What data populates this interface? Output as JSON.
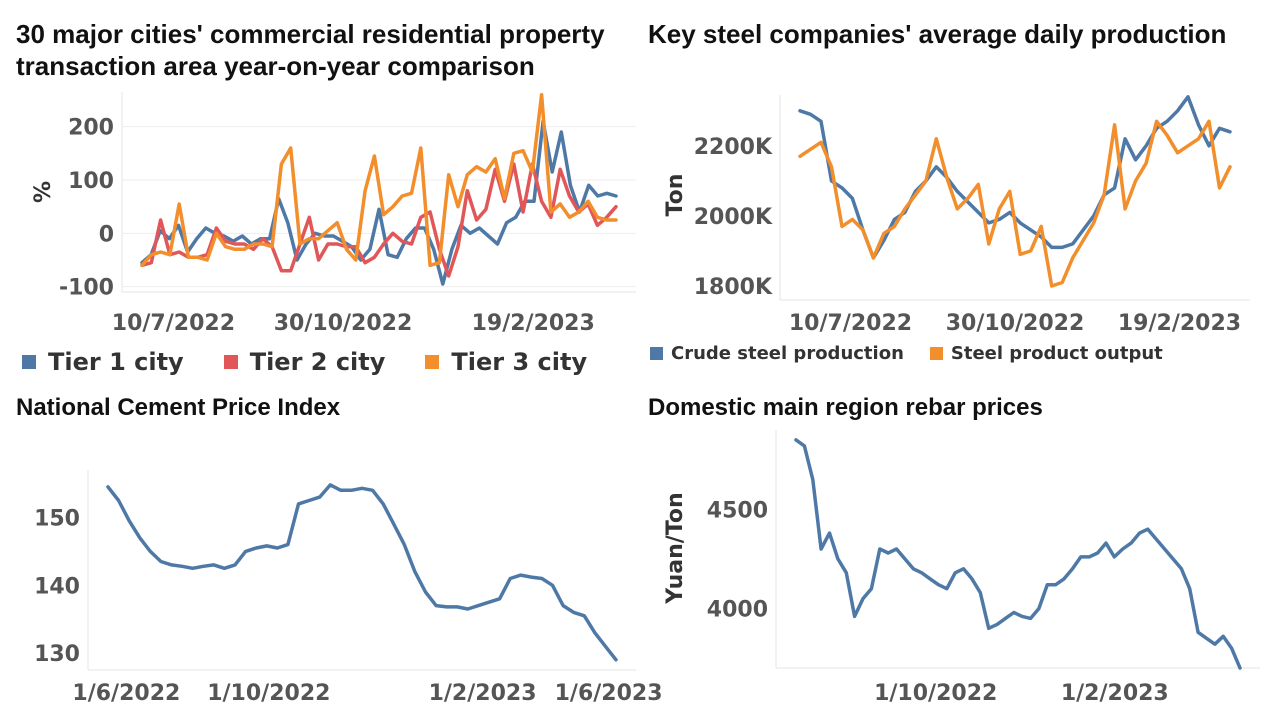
{
  "chart_data": [
    {
      "type": "line",
      "title": "30 major cities' commercial residential property transaction area year-on-year comparison",
      "ylabel": "%",
      "ylim": [
        -110,
        265
      ],
      "yticks": [
        -100,
        0,
        100,
        200
      ],
      "xticks": [
        "10/7/2022",
        "30/10/2022",
        "19/2/2023"
      ],
      "legend_position": "bottom",
      "grid": true,
      "series": [
        {
          "name": "Tier 1 city",
          "color": "#4e79a7",
          "values": [
            -55,
            -40,
            5,
            -10,
            15,
            -35,
            -10,
            10,
            0,
            -5,
            -15,
            -5,
            -20,
            -10,
            -10,
            65,
            20,
            -50,
            -20,
            0,
            -5,
            -5,
            -15,
            -25,
            -50,
            -30,
            45,
            -40,
            -45,
            -10,
            10,
            10,
            -30,
            -95,
            -30,
            15,
            0,
            10,
            -5,
            -20,
            20,
            30,
            60,
            60,
            210,
            115,
            190,
            90,
            40,
            90,
            70,
            75,
            70
          ]
        },
        {
          "name": "Tier 2 city",
          "color": "#e15759",
          "values": [
            -60,
            -55,
            25,
            -40,
            -35,
            -45,
            -45,
            -40,
            10,
            -15,
            -20,
            -20,
            -30,
            -10,
            -25,
            -70,
            -70,
            -20,
            30,
            -50,
            -20,
            -20,
            -25,
            -25,
            -55,
            -45,
            -20,
            0,
            -15,
            -20,
            30,
            40,
            -30,
            -80,
            -25,
            80,
            25,
            45,
            120,
            60,
            130,
            40,
            130,
            60,
            30,
            120,
            70,
            40,
            55,
            15,
            30,
            50
          ]
        },
        {
          "name": "Tier 3 city",
          "color": "#f28e2b",
          "values": [
            -60,
            -40,
            -35,
            -40,
            55,
            -45,
            -45,
            -50,
            0,
            -25,
            -30,
            -30,
            -20,
            -20,
            -25,
            130,
            160,
            -20,
            -10,
            -10,
            5,
            20,
            -30,
            -50,
            80,
            145,
            35,
            50,
            70,
            75,
            160,
            -60,
            -55,
            110,
            50,
            110,
            125,
            115,
            140,
            65,
            150,
            155,
            115,
            260,
            40,
            55,
            30,
            40,
            60,
            30,
            25,
            25
          ]
        }
      ]
    },
    {
      "type": "line",
      "title": "Key steel companies' average daily production",
      "ylabel": "Ton",
      "ylim": [
        1760,
        2345
      ],
      "yticks": [
        "1800K",
        "2000K",
        "2200K"
      ],
      "ytick_values": [
        1800,
        2000,
        2200
      ],
      "xticks": [
        "10/7/2022",
        "30/10/2022",
        "19/2/2023"
      ],
      "legend_position": "bottom",
      "grid": false,
      "series": [
        {
          "name": "Crude steel production",
          "color": "#4e79a7",
          "values": [
            2300,
            2290,
            2270,
            2100,
            2080,
            2050,
            1960,
            1880,
            1930,
            1990,
            2010,
            2070,
            2100,
            2140,
            2110,
            2070,
            2040,
            2010,
            1980,
            1990,
            2010,
            1980,
            1960,
            1940,
            1910,
            1910,
            1920,
            1960,
            2000,
            2060,
            2080,
            2220,
            2160,
            2200,
            2250,
            2270,
            2300,
            2340,
            2260,
            2200,
            2250,
            2240
          ]
        },
        {
          "name": "Steel product output",
          "color": "#f28e2b",
          "values": [
            2170,
            2190,
            2210,
            2140,
            1970,
            1990,
            1960,
            1880,
            1950,
            1970,
            2020,
            2060,
            2100,
            2220,
            2110,
            2020,
            2050,
            2090,
            1920,
            2020,
            2070,
            1890,
            1900,
            1970,
            1800,
            1810,
            1880,
            1930,
            1980,
            2060,
            2260,
            2020,
            2100,
            2150,
            2270,
            2230,
            2180,
            2200,
            2220,
            2270,
            2080,
            2140
          ]
        }
      ]
    },
    {
      "type": "line",
      "title": "National Cement Price Index",
      "ylabel": "",
      "ylim": [
        127.5,
        157
      ],
      "yticks": [
        130,
        140,
        150
      ],
      "xticks": [
        "1/6/2022",
        "1/10/2022",
        "1/2/2023",
        "1/6/2023"
      ],
      "legend_position": "none",
      "grid": false,
      "series": [
        {
          "name": "",
          "color": "#4e79a7",
          "values": [
            154.5,
            152.5,
            149.5,
            147,
            145,
            143.5,
            143,
            142.8,
            142.5,
            142.8,
            143,
            142.5,
            143,
            145,
            145.5,
            145.8,
            145.5,
            146,
            152,
            152.5,
            153,
            154.8,
            154,
            154,
            154.3,
            154,
            152,
            149,
            146,
            142,
            139,
            137,
            136.8,
            136.8,
            136.5,
            137,
            137.5,
            138,
            141,
            141.5,
            141.2,
            141,
            140,
            137,
            136,
            135.5,
            133,
            131,
            129
          ]
        }
      ]
    },
    {
      "type": "line",
      "title": "Domestic main region rebar prices",
      "ylabel": "Yuan/Ton",
      "ylim": [
        3700,
        4900
      ],
      "yticks": [
        4000,
        4500
      ],
      "xticks": [
        "1/10/2022",
        "1/2/2023"
      ],
      "legend_position": "none",
      "grid": false,
      "series": [
        {
          "name": "",
          "color": "#4e79a7",
          "values": [
            4850,
            4820,
            4650,
            4300,
            4380,
            4250,
            4180,
            3960,
            4050,
            4100,
            4300,
            4280,
            4300,
            4250,
            4200,
            4180,
            4150,
            4120,
            4100,
            4180,
            4200,
            4150,
            4080,
            3900,
            3920,
            3950,
            3980,
            3960,
            3950,
            4000,
            4120,
            4120,
            4150,
            4200,
            4260,
            4260,
            4280,
            4330,
            4260,
            4300,
            4330,
            4380,
            4400,
            4350,
            4300,
            4250,
            4200,
            4100,
            3880,
            3850,
            3820,
            3860,
            3800,
            3700
          ]
        }
      ]
    }
  ],
  "colors": {
    "series_blue": "#4e79a7",
    "series_red": "#e15759",
    "series_orange": "#f28e2b",
    "grid": "#eeeeee",
    "tick_text": "#555555"
  }
}
